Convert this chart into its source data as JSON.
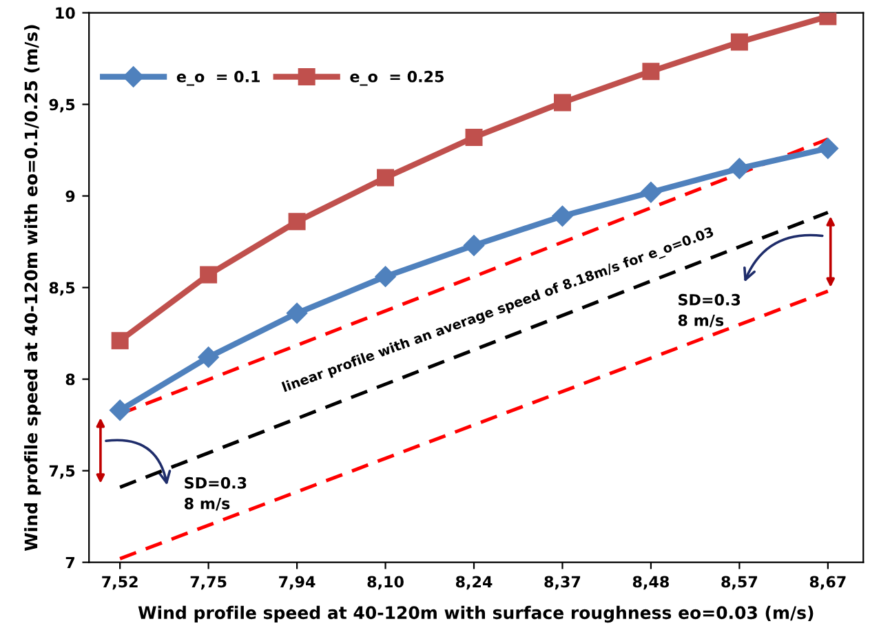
{
  "chart_data": {
    "type": "line",
    "xlabel": "Wind profile speed at 40-120m with surface roughness eo=0.03 (m/s)",
    "ylabel": "Wind profile speed at 40-120m with eo=0.1/0.25 (m/s)",
    "categories": [
      "7,52",
      "7,75",
      "7,94",
      "8,10",
      "8,24",
      "8,37",
      "8,48",
      "8,57",
      "8,67"
    ],
    "ylim": [
      7,
      10
    ],
    "yticks": [
      7,
      {
        "value": 7.5,
        "label": "7,5"
      },
      8,
      {
        "value": 8.5,
        "label": "8,5"
      },
      9,
      {
        "value": 9.5,
        "label": "9,5"
      },
      10
    ],
    "series": [
      {
        "name": "e_o  = 0.1",
        "color": "#4f81bd",
        "marker": "diamond",
        "values": [
          7.83,
          8.12,
          8.36,
          8.56,
          8.73,
          8.89,
          9.02,
          9.15,
          9.26
        ]
      },
      {
        "name": "e_o  = 0.25",
        "color": "#c0504d",
        "marker": "square",
        "values": [
          8.21,
          8.57,
          8.86,
          9.1,
          9.32,
          9.51,
          9.68,
          9.84,
          9.98
        ]
      },
      {
        "color": "#000000",
        "line_style": "dashed",
        "marker": "none",
        "x": [
          "7,52",
          "8,67"
        ],
        "values": [
          7.41,
          8.91
        ]
      },
      {
        "color": "#ff0000",
        "line_style": "dashed",
        "marker": "none",
        "x": [
          "7,52",
          "8,67"
        ],
        "values": [
          7.81,
          9.31
        ]
      },
      {
        "color": "#ff0000",
        "line_style": "dashed",
        "marker": "none",
        "x": [
          "7,52",
          "8,67"
        ],
        "values": [
          7.02,
          8.48
        ]
      }
    ],
    "annotations": [
      "linear profile with an average speed of 8.18m/s for e_o=0.03",
      "SD=0.3\n8 m/s",
      "SD=0.3\n8 m/s"
    ],
    "grid": false,
    "legend": "top left"
  }
}
